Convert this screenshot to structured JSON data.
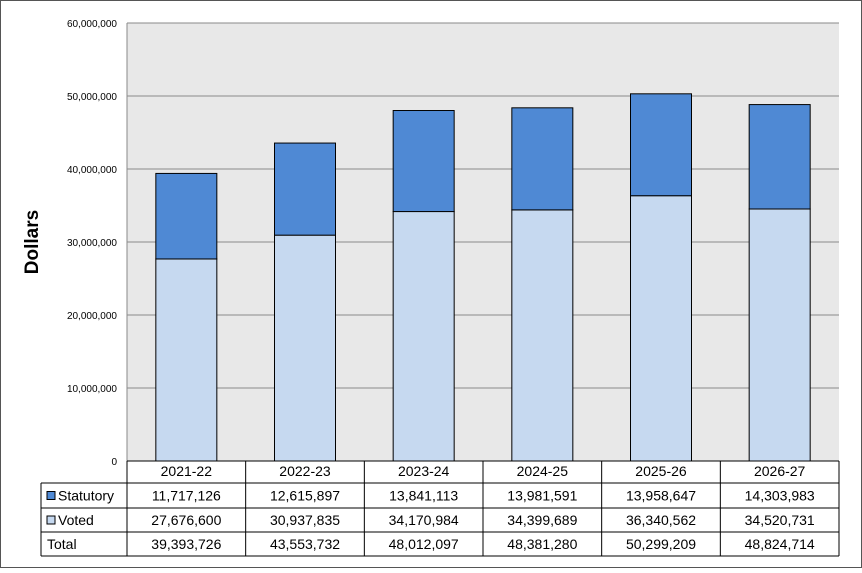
{
  "colors": {
    "statutory": "#4f89d4",
    "voted": "#c6d9f0",
    "plot_bg": "#e8e8e8",
    "gridline": "#8a8a8a",
    "border": "#555555"
  },
  "chart_data": {
    "type": "bar",
    "stacked": true,
    "ylabel": "Dollars",
    "ylim": [
      0,
      60000000
    ],
    "yticks": [
      "0",
      "10,000,000",
      "20,000,000",
      "30,000,000",
      "40,000,000",
      "50,000,000",
      "60,000,000"
    ],
    "ytick_values": [
      0,
      10000000,
      20000000,
      30000000,
      40000000,
      50000000,
      60000000
    ],
    "grid": true,
    "legend": "data-table",
    "categories": [
      "2021-22",
      "2022-23",
      "2023-24",
      "2024-25",
      "2025-26",
      "2026-27"
    ],
    "series": [
      {
        "name": "Voted",
        "values": [
          27676600,
          30937835,
          34170984,
          34399689,
          36340562,
          34520731
        ],
        "labels": [
          "27,676,600",
          "30,937,835",
          "34,170,984",
          "34,399,689",
          "36,340,562",
          "34,520,731"
        ]
      },
      {
        "name": "Statutory",
        "values": [
          11717126,
          12615897,
          13841113,
          13981591,
          13958647,
          14303983
        ],
        "labels": [
          "11,717,126",
          "12,615,897",
          "13,841,113",
          "13,981,591",
          "13,958,647",
          "14,303,983"
        ]
      }
    ],
    "table": {
      "rows": [
        {
          "key": "statutory",
          "label": "Statutory",
          "values": [
            "11,717,126",
            "12,615,897",
            "13,841,113",
            "13,981,591",
            "13,958,647",
            "14,303,983"
          ]
        },
        {
          "key": "voted",
          "label": "Voted",
          "values": [
            "27,676,600",
            "30,937,835",
            "34,170,984",
            "34,399,689",
            "36,340,562",
            "34,520,731"
          ]
        },
        {
          "key": "total",
          "label": "Total",
          "values": [
            "39,393,726",
            "43,553,732",
            "48,012,097",
            "48,381,280",
            "50,299,209",
            "48,824,714"
          ]
        }
      ]
    }
  }
}
